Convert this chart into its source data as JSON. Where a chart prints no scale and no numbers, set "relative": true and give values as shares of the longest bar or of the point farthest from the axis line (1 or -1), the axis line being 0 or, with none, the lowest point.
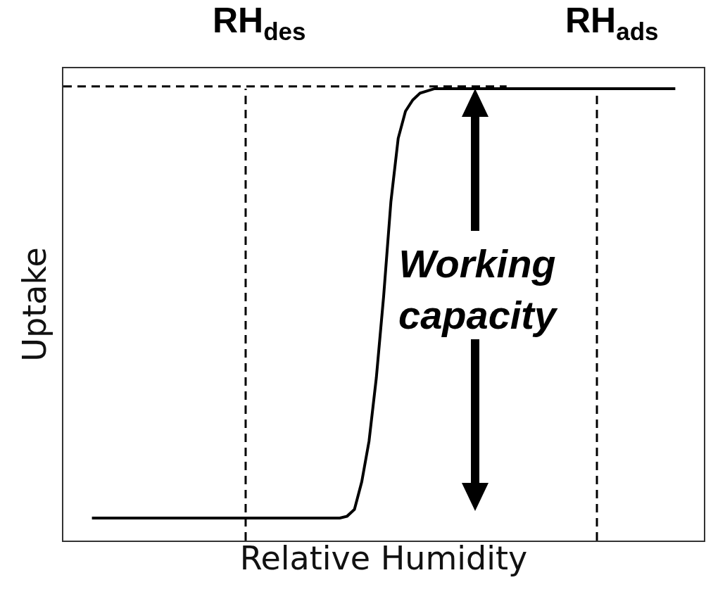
{
  "chart_data": {
    "type": "line",
    "relative": true,
    "xlabel": "Relative Humidity",
    "ylabel": "Uptake",
    "tick_labels": false,
    "categories": [
      null,
      null,
      null,
      null,
      null,
      null,
      null,
      null,
      null,
      null,
      null,
      null,
      null,
      null,
      null,
      null,
      null,
      null,
      null,
      null,
      null,
      null,
      null,
      null,
      null,
      null,
      null,
      null,
      null,
      null,
      null,
      null,
      null,
      null,
      null,
      null,
      null,
      null,
      null,
      null,
      null,
      null,
      null,
      null,
      null,
      null,
      null,
      null,
      null,
      null,
      null,
      null,
      null,
      null,
      null,
      null,
      null,
      null,
      null,
      null,
      null,
      null,
      null,
      null,
      null,
      null,
      null,
      null,
      null,
      null,
      null,
      null,
      null,
      null,
      null,
      null,
      null,
      null,
      null,
      null,
      null
    ],
    "series": [
      {
        "color": "#000000",
        "values": [
          0.05,
          0.05,
          0.05,
          0.05,
          0.05,
          0.05,
          0.05,
          0.05,
          0.05,
          0.05,
          0.05,
          0.05,
          0.05,
          0.05,
          0.05,
          0.05,
          0.05,
          0.05,
          0.05,
          0.05,
          0.05,
          0.05,
          0.05,
          0.05,
          0.05,
          0.05,
          0.05,
          0.05,
          0.05,
          0.05,
          0.05,
          0.05,
          0.05,
          0.05,
          0.05,
          0.054,
          0.069,
          0.13,
          0.22,
          0.36,
          0.54,
          0.75,
          0.89,
          0.95,
          0.975,
          0.99,
          0.995,
          1,
          1,
          1,
          1,
          1,
          1,
          1,
          1,
          1,
          1,
          1,
          1,
          1,
          1,
          1,
          1,
          1,
          1,
          1,
          1,
          1,
          1,
          1,
          1,
          1,
          1,
          1,
          1,
          1,
          1,
          1,
          1,
          1,
          1
        ]
      }
    ],
    "ref_lines": [
      {
        "axis": "y",
        "value": 1.005,
        "line_style": "dashed",
        "color": "#000000"
      }
    ],
    "annotations": [
      "RH$_{des}$",
      "RH$_{ads}$",
      "Working capacity"
    ]
  }
}
